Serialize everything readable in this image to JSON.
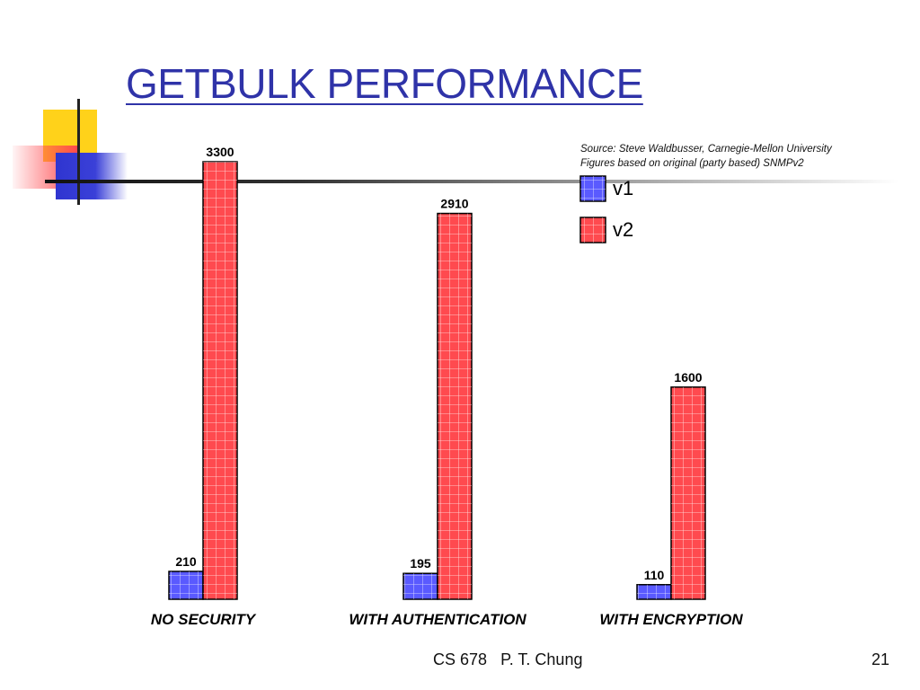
{
  "slide": {
    "title": "GETBULK PERFORMANCE",
    "source_line1": "Source: Steve Waldbusser, Carnegie-Mellon University",
    "source_line2": "Figures based on original (party based) SNMPv2",
    "footer_course": "CS 678",
    "footer_author": "P. T. Chung",
    "footer_page": "21"
  },
  "chart_data": {
    "type": "bar",
    "categories": [
      "NO SECURITY",
      "WITH AUTHENTICATION",
      "WITH ENCRYPTION"
    ],
    "series": [
      {
        "name": "v1",
        "values": [
          210,
          195,
          110
        ],
        "color": "#5a5aff"
      },
      {
        "name": "v2",
        "values": [
          3300,
          2910,
          1600
        ],
        "color": "#ff4a4f"
      }
    ],
    "data_labels": true,
    "ylim": [
      0,
      3300
    ],
    "grid": false,
    "legend_position": "top-right"
  }
}
